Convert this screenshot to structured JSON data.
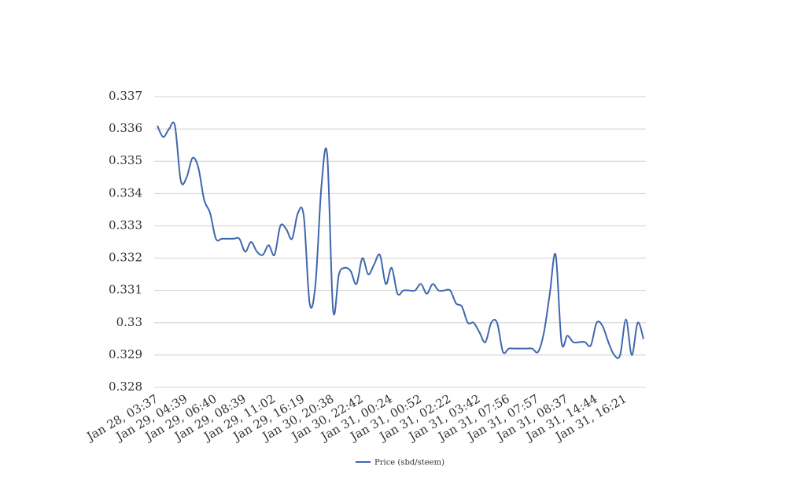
{
  "chart_data": {
    "type": "line",
    "categories": [
      "Jan 28, 03:37",
      null,
      null,
      null,
      null,
      "Jan 29, 04:39",
      null,
      null,
      null,
      null,
      "Jan 29, 06:40",
      null,
      null,
      null,
      null,
      "Jan 29, 08:39",
      null,
      null,
      null,
      null,
      "Jan 29, 11:02",
      null,
      null,
      null,
      null,
      "Jan 29, 16:19",
      null,
      null,
      null,
      null,
      "Jan 30, 20:38",
      null,
      null,
      null,
      null,
      "Jan 30, 22:42",
      null,
      null,
      null,
      null,
      "Jan 31, 00:24",
      null,
      null,
      null,
      null,
      "Jan 31, 00:52",
      null,
      null,
      null,
      null,
      "Jan 31, 02:22",
      null,
      null,
      null,
      null,
      "Jan 31, 03:42",
      null,
      null,
      null,
      null,
      "Jan 31, 07:56",
      null,
      null,
      null,
      null,
      "Jan 31, 07:57",
      null,
      null,
      null,
      null,
      "Jan 31, 08:37",
      null,
      null,
      null,
      null,
      "Jan 31, 14:44",
      null,
      null,
      null,
      null,
      "Jan 31, 16:21",
      null,
      null,
      null
    ],
    "series": [
      {
        "name": "Price (sbd/steem)",
        "color": "#3f67ad",
        "values": [
          0.3361,
          0.33575,
          0.336,
          0.3361,
          0.3344,
          0.3345,
          0.3351,
          0.3348,
          0.3338,
          0.3334,
          0.3326,
          0.3326,
          0.3326,
          0.3326,
          0.3326,
          0.3322,
          0.3325,
          0.3322,
          0.3321,
          0.3324,
          0.3321,
          0.333,
          0.3329,
          0.3326,
          0.3334,
          0.3333,
          0.3306,
          0.3312,
          0.3342,
          0.3352,
          0.3304,
          0.3315,
          0.3317,
          0.3316,
          0.3312,
          0.332,
          0.3315,
          0.3318,
          0.3321,
          0.3312,
          0.3317,
          0.3309,
          0.331,
          0.331,
          0.331,
          0.3312,
          0.3309,
          0.3312,
          0.331,
          0.331,
          0.331,
          0.3306,
          0.3305,
          0.33,
          0.33,
          0.3297,
          0.3294,
          0.33,
          0.33,
          0.3291,
          0.3292,
          0.3292,
          0.3292,
          0.3292,
          0.3292,
          0.3291,
          0.3297,
          0.3309,
          0.3321,
          0.3294,
          0.3296,
          0.3294,
          0.3294,
          0.3294,
          0.3293,
          0.33,
          0.3299,
          0.3294,
          0.329,
          0.329,
          0.3301,
          0.329,
          0.33,
          0.3295
        ]
      }
    ],
    "ylim": [
      0.328,
      0.337
    ],
    "yticks": [
      0.328,
      0.329,
      0.33,
      0.331,
      0.332,
      0.333,
      0.334,
      0.335,
      0.336,
      0.337
    ],
    "grid": true,
    "legend": "bottom"
  }
}
